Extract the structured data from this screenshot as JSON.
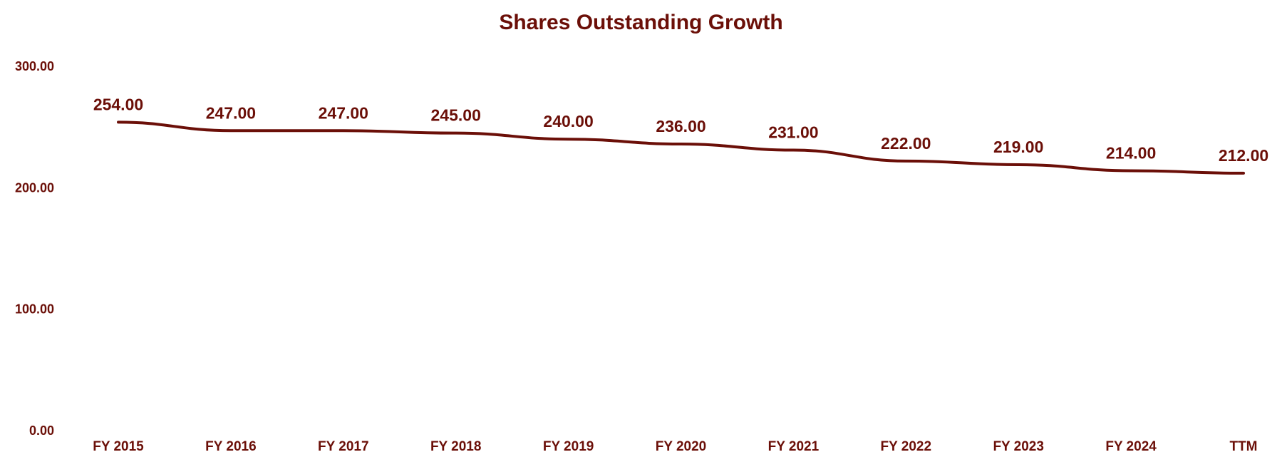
{
  "chart_data": {
    "type": "line",
    "title": "Shares Outstanding Growth",
    "categories": [
      "FY 2015",
      "FY 2016",
      "FY 2017",
      "FY 2018",
      "FY 2019",
      "FY 2020",
      "FY 2021",
      "FY 2022",
      "FY 2023",
      "FY 2024",
      "TTM"
    ],
    "series": [
      {
        "values": [
          254,
          247,
          247,
          245,
          240,
          236,
          231,
          222,
          219,
          214,
          212
        ],
        "labels": [
          "254.00",
          "247.00",
          "247.00",
          "245.00",
          "240.00",
          "236.00",
          "231.00",
          "222.00",
          "219.00",
          "214.00",
          "212.00"
        ]
      }
    ],
    "yticks": [
      0,
      100,
      200,
      300
    ],
    "ytick_labels": [
      "0.00",
      "100.00",
      "200.00",
      "300.00"
    ],
    "ylim": [
      0,
      300
    ],
    "xlabel": "",
    "ylabel": "",
    "grid": false,
    "legend": "none",
    "line_style": "smooth",
    "colors": {
      "line": "#6b0f08",
      "text": "#6b0f08"
    }
  }
}
